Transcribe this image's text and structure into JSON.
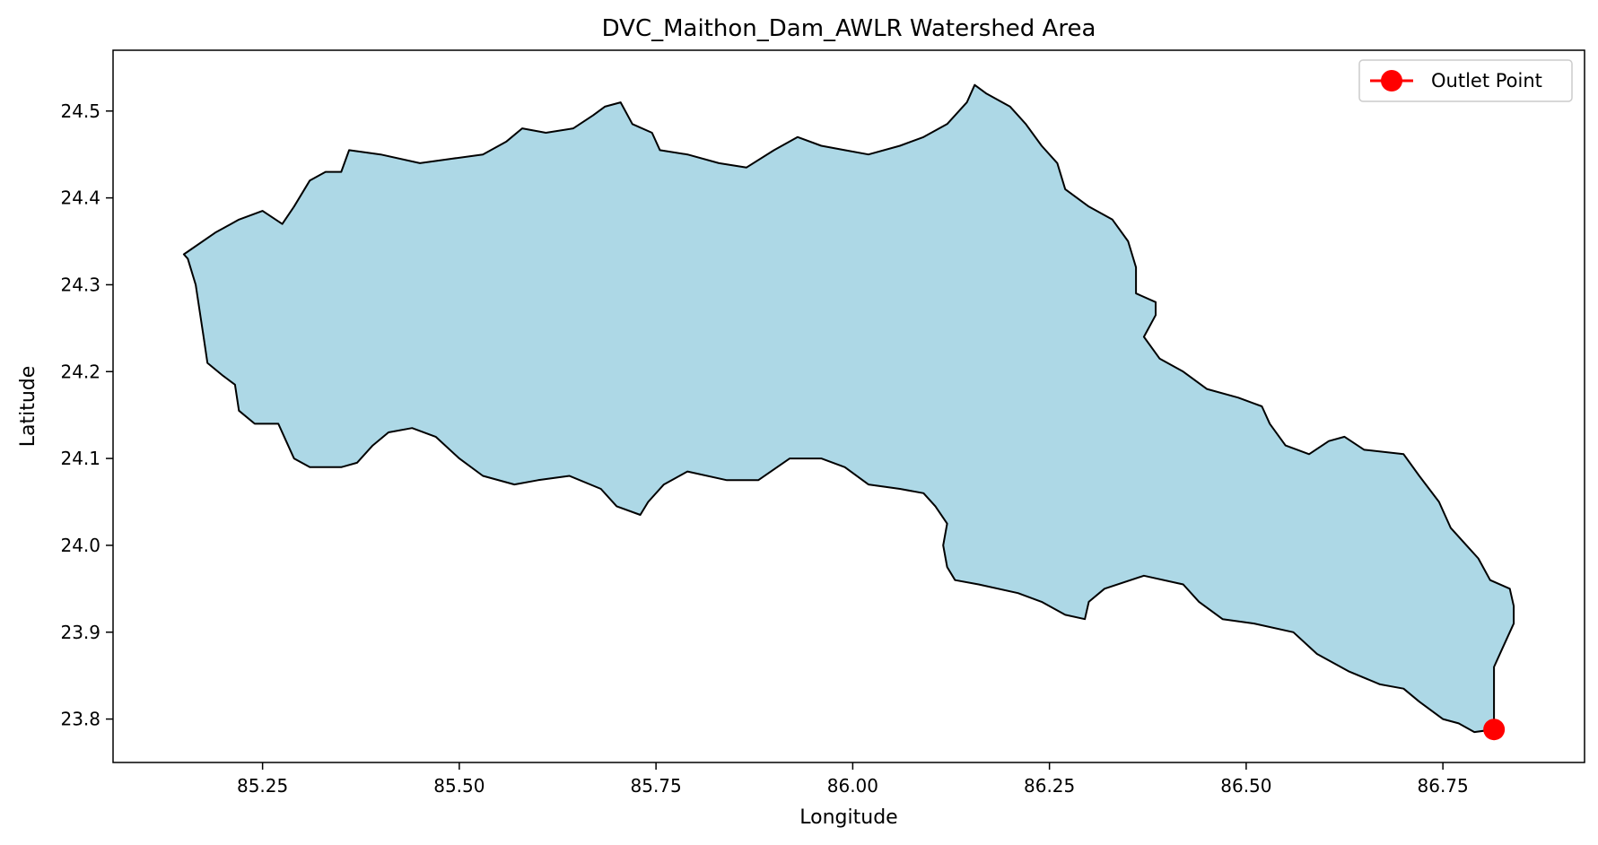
{
  "chart_data": {
    "type": "map",
    "title": "DVC_Maithon_Dam_AWLR Watershed Area",
    "xlabel": "Longitude",
    "ylabel": "Latitude",
    "xlim": [
      85.06,
      86.93
    ],
    "ylim": [
      23.75,
      24.57
    ],
    "xticks": [
      85.25,
      85.5,
      85.75,
      86.0,
      86.25,
      86.5,
      86.75
    ],
    "xtick_labels": [
      "85.25",
      "85.50",
      "85.75",
      "86.00",
      "86.25",
      "86.50",
      "86.75"
    ],
    "yticks": [
      23.8,
      23.9,
      24.0,
      24.1,
      24.2,
      24.3,
      24.4,
      24.5
    ],
    "ytick_labels": [
      "23.8",
      "23.9",
      "24.0",
      "24.1",
      "24.2",
      "24.3",
      "24.4",
      "24.5"
    ],
    "grid": false,
    "legend_position": "top-right",
    "colors": {
      "watershed_fill": "#add8e6",
      "watershed_edge": "#000000",
      "outlet": "#ff0000"
    },
    "watershed_boundary": [
      [
        85.15,
        24.335
      ],
      [
        85.19,
        24.36
      ],
      [
        85.22,
        24.375
      ],
      [
        85.25,
        24.385
      ],
      [
        85.275,
        24.37
      ],
      [
        85.29,
        24.39
      ],
      [
        85.31,
        24.42
      ],
      [
        85.33,
        24.43
      ],
      [
        85.35,
        24.43
      ],
      [
        85.36,
        24.455
      ],
      [
        85.4,
        24.45
      ],
      [
        85.45,
        24.44
      ],
      [
        85.49,
        24.445
      ],
      [
        85.53,
        24.45
      ],
      [
        85.56,
        24.465
      ],
      [
        85.58,
        24.48
      ],
      [
        85.61,
        24.475
      ],
      [
        85.645,
        24.48
      ],
      [
        85.67,
        24.495
      ],
      [
        85.685,
        24.505
      ],
      [
        85.705,
        24.51
      ],
      [
        85.72,
        24.485
      ],
      [
        85.745,
        24.475
      ],
      [
        85.755,
        24.455
      ],
      [
        85.79,
        24.45
      ],
      [
        85.83,
        24.44
      ],
      [
        85.865,
        24.435
      ],
      [
        85.9,
        24.455
      ],
      [
        85.93,
        24.47
      ],
      [
        85.96,
        24.46
      ],
      [
        85.99,
        24.455
      ],
      [
        86.02,
        24.45
      ],
      [
        86.06,
        24.46
      ],
      [
        86.09,
        24.47
      ],
      [
        86.12,
        24.485
      ],
      [
        86.145,
        24.51
      ],
      [
        86.155,
        24.53
      ],
      [
        86.17,
        24.52
      ],
      [
        86.2,
        24.505
      ],
      [
        86.22,
        24.485
      ],
      [
        86.24,
        24.46
      ],
      [
        86.26,
        24.44
      ],
      [
        86.27,
        24.41
      ],
      [
        86.3,
        24.39
      ],
      [
        86.33,
        24.375
      ],
      [
        86.35,
        24.35
      ],
      [
        86.36,
        24.32
      ],
      [
        86.36,
        24.29
      ],
      [
        86.385,
        24.28
      ],
      [
        86.385,
        24.265
      ],
      [
        86.37,
        24.24
      ],
      [
        86.39,
        24.215
      ],
      [
        86.42,
        24.2
      ],
      [
        86.45,
        24.18
      ],
      [
        86.49,
        24.17
      ],
      [
        86.52,
        24.16
      ],
      [
        86.53,
        24.14
      ],
      [
        86.55,
        24.115
      ],
      [
        86.58,
        24.105
      ],
      [
        86.605,
        24.12
      ],
      [
        86.625,
        24.125
      ],
      [
        86.65,
        24.11
      ],
      [
        86.7,
        24.105
      ],
      [
        86.72,
        24.08
      ],
      [
        86.745,
        24.05
      ],
      [
        86.76,
        24.02
      ],
      [
        86.78,
        24.0
      ],
      [
        86.795,
        23.985
      ],
      [
        86.81,
        23.96
      ],
      [
        86.835,
        23.95
      ],
      [
        86.84,
        23.93
      ],
      [
        86.84,
        23.91
      ],
      [
        86.825,
        23.88
      ],
      [
        86.815,
        23.86
      ],
      [
        86.815,
        23.788
      ],
      [
        86.79,
        23.785
      ],
      [
        86.77,
        23.795
      ],
      [
        86.75,
        23.8
      ],
      [
        86.72,
        23.82
      ],
      [
        86.7,
        23.835
      ],
      [
        86.67,
        23.84
      ],
      [
        86.63,
        23.855
      ],
      [
        86.59,
        23.875
      ],
      [
        86.56,
        23.9
      ],
      [
        86.51,
        23.91
      ],
      [
        86.47,
        23.915
      ],
      [
        86.44,
        23.935
      ],
      [
        86.42,
        23.955
      ],
      [
        86.37,
        23.965
      ],
      [
        86.32,
        23.95
      ],
      [
        86.3,
        23.935
      ],
      [
        86.295,
        23.915
      ],
      [
        86.27,
        23.92
      ],
      [
        86.24,
        23.935
      ],
      [
        86.21,
        23.945
      ],
      [
        86.16,
        23.955
      ],
      [
        86.13,
        23.96
      ],
      [
        86.12,
        23.975
      ],
      [
        86.115,
        24.0
      ],
      [
        86.12,
        24.025
      ],
      [
        86.105,
        24.045
      ],
      [
        86.09,
        24.06
      ],
      [
        86.06,
        24.065
      ],
      [
        86.02,
        24.07
      ],
      [
        85.99,
        24.09
      ],
      [
        85.96,
        24.1
      ],
      [
        85.92,
        24.1
      ],
      [
        85.88,
        24.075
      ],
      [
        85.84,
        24.075
      ],
      [
        85.79,
        24.085
      ],
      [
        85.76,
        24.07
      ],
      [
        85.74,
        24.05
      ],
      [
        85.73,
        24.035
      ],
      [
        85.7,
        24.045
      ],
      [
        85.68,
        24.065
      ],
      [
        85.64,
        24.08
      ],
      [
        85.6,
        24.075
      ],
      [
        85.57,
        24.07
      ],
      [
        85.53,
        24.08
      ],
      [
        85.5,
        24.1
      ],
      [
        85.47,
        24.125
      ],
      [
        85.44,
        24.135
      ],
      [
        85.41,
        24.13
      ],
      [
        85.39,
        24.115
      ],
      [
        85.37,
        24.095
      ],
      [
        85.35,
        24.09
      ],
      [
        85.31,
        24.09
      ],
      [
        85.29,
        24.1
      ],
      [
        85.28,
        24.12
      ],
      [
        85.27,
        24.14
      ],
      [
        85.24,
        24.14
      ],
      [
        85.22,
        24.155
      ],
      [
        85.215,
        24.185
      ],
      [
        85.2,
        24.195
      ],
      [
        85.18,
        24.21
      ],
      [
        85.175,
        24.24
      ],
      [
        85.17,
        24.27
      ],
      [
        85.165,
        24.3
      ],
      [
        85.155,
        24.33
      ],
      [
        85.15,
        24.335
      ]
    ],
    "outlet_point": {
      "label": "Outlet Point",
      "lon": 86.815,
      "lat": 23.788
    }
  }
}
